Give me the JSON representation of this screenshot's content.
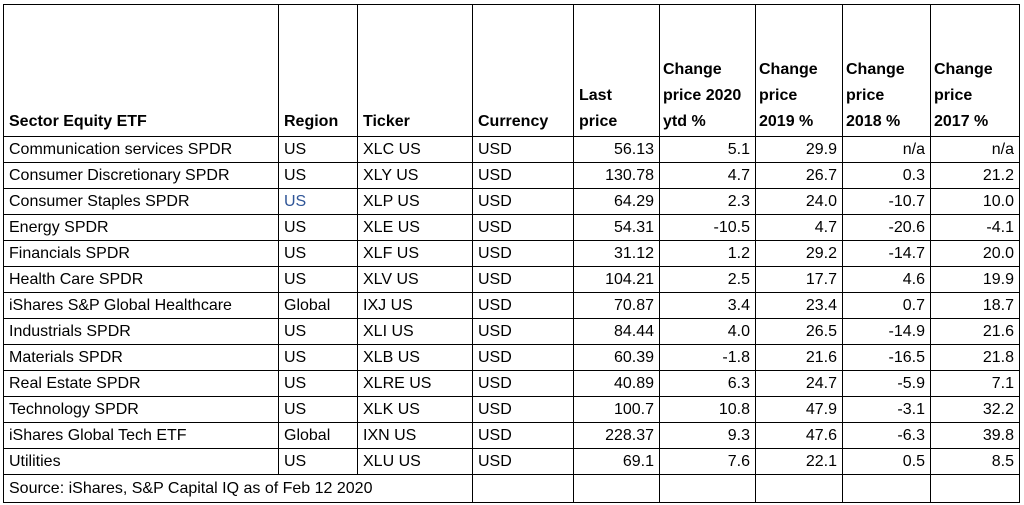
{
  "headers": {
    "etf": "Sector Equity ETF",
    "region": "Region",
    "ticker": "Ticker",
    "currency": "Currency",
    "last_price": "Last price",
    "change_2020": [
      "Change",
      "price 2020",
      "ytd %"
    ],
    "change_2019": [
      "Change",
      "price",
      "2019 %"
    ],
    "change_2018": [
      "Change",
      "price",
      "2018 %"
    ],
    "change_2017": [
      "Change",
      "price",
      "2017 %"
    ]
  },
  "rows": [
    {
      "etf": "Communication services SPDR",
      "region": "US",
      "ticker": "XLC US",
      "currency": "USD",
      "last_price": "56.13",
      "c2020": "5.1",
      "c2019": "29.9",
      "c2018": "n/a",
      "c2017": "n/a"
    },
    {
      "etf": "Consumer Discretionary SPDR",
      "region": "US",
      "ticker": "XLY US",
      "currency": "USD",
      "last_price": "130.78",
      "c2020": "4.7",
      "c2019": "26.7",
      "c2018": "0.3",
      "c2017": "21.2"
    },
    {
      "etf": "Consumer Staples SPDR",
      "region": "US",
      "ticker": "XLP US",
      "currency": "USD",
      "last_price": "64.29",
      "c2020": "2.3",
      "c2019": "24.0",
      "c2018": "-10.7",
      "c2017": "10.0"
    },
    {
      "etf": "Energy SPDR",
      "region": "US",
      "ticker": "XLE US",
      "currency": "USD",
      "last_price": "54.31",
      "c2020": "-10.5",
      "c2019": "4.7",
      "c2018": "-20.6",
      "c2017": "-4.1"
    },
    {
      "etf": "Financials SPDR",
      "region": "US",
      "ticker": "XLF US",
      "currency": "USD",
      "last_price": "31.12",
      "c2020": "1.2",
      "c2019": "29.2",
      "c2018": "-14.7",
      "c2017": "20.0"
    },
    {
      "etf": "Health Care SPDR",
      "region": "US",
      "ticker": "XLV US",
      "currency": "USD",
      "last_price": "104.21",
      "c2020": "2.5",
      "c2019": "17.7",
      "c2018": "4.6",
      "c2017": "19.9"
    },
    {
      "etf": "iShares S&P Global Healthcare",
      "region": "Global",
      "ticker": "IXJ US",
      "currency": "USD",
      "last_price": "70.87",
      "c2020": "3.4",
      "c2019": "23.4",
      "c2018": "0.7",
      "c2017": "18.7"
    },
    {
      "etf": "Industrials SPDR",
      "region": "US",
      "ticker": "XLI US",
      "currency": "USD",
      "last_price": "84.44",
      "c2020": "4.0",
      "c2019": "26.5",
      "c2018": "-14.9",
      "c2017": "21.6"
    },
    {
      "etf": "Materials SPDR",
      "region": "US",
      "ticker": "XLB US",
      "currency": "USD",
      "last_price": "60.39",
      "c2020": "-1.8",
      "c2019": "21.6",
      "c2018": "-16.5",
      "c2017": "21.8"
    },
    {
      "etf": "Real Estate SPDR",
      "region": "US",
      "ticker": "XLRE US",
      "currency": "USD",
      "last_price": "40.89",
      "c2020": "6.3",
      "c2019": "24.7",
      "c2018": "-5.9",
      "c2017": "7.1"
    },
    {
      "etf": "Technology SPDR",
      "region": "US",
      "ticker": "XLK US",
      "currency": "USD",
      "last_price": "100.7",
      "c2020": "10.8",
      "c2019": "47.9",
      "c2018": "-3.1",
      "c2017": "32.2"
    },
    {
      "etf": "iShares Global Tech ETF",
      "region": "Global",
      "ticker": "IXN US",
      "currency": "USD",
      "last_price": "228.37",
      "c2020": "9.3",
      "c2019": "47.6",
      "c2018": "-6.3",
      "c2017": "39.8"
    },
    {
      "etf": "Utilities",
      "region": "US",
      "ticker": "XLU US",
      "currency": "USD",
      "last_price": "69.1",
      "c2020": "7.6",
      "c2019": "22.1",
      "c2018": "0.5",
      "c2017": "8.5"
    }
  ],
  "source": "Source: iShares, S&P Capital  IQ as of Feb 12 2020",
  "colors": {
    "text": "#000000",
    "region_highlight": "#2f5597"
  },
  "highlighted_region_row": 2
}
